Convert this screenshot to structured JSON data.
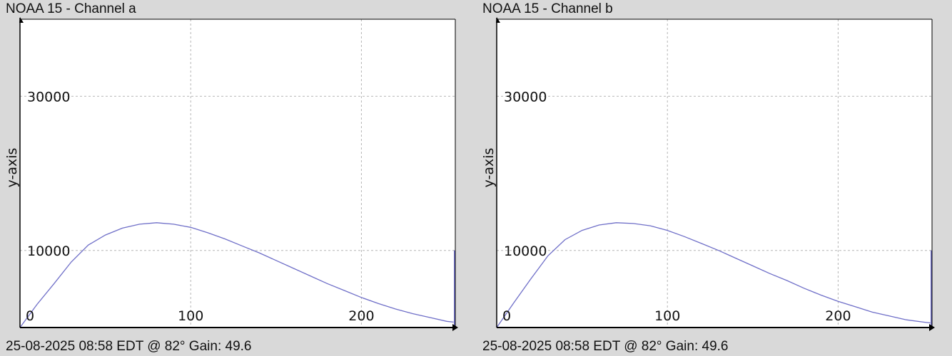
{
  "charts": [
    {
      "title": "NOAA 15 - Channel a",
      "footer": "25-08-2025 08:58 EDT @ 82° Gain: 49.6"
    },
    {
      "title": "NOAA 15 - Channel b",
      "footer": "25-08-2025 08:58 EDT @ 82° Gain: 49.6"
    }
  ],
  "chart_data": [
    {
      "type": "line",
      "title": "NOAA 15 - Channel a",
      "xlabel": "",
      "ylabel": "y-axis",
      "xlim": [
        0,
        255
      ],
      "ylim": [
        0,
        40000
      ],
      "x_ticks": [
        0,
        100,
        200
      ],
      "y_ticks": [
        0,
        10000,
        30000
      ],
      "grid": true,
      "line_color": "#6f6fc8",
      "series": [
        {
          "x": [
            0,
            10,
            20,
            30,
            40,
            50,
            60,
            70,
            80,
            90,
            100,
            110,
            120,
            130,
            140,
            150,
            160,
            170,
            180,
            190,
            200,
            210,
            220,
            230,
            240,
            250,
            254
          ],
          "y": [
            0,
            3000,
            5700,
            8500,
            10700,
            12000,
            12900,
            13400,
            13600,
            13400,
            13000,
            12300,
            11500,
            10600,
            9700,
            8700,
            7700,
            6700,
            5700,
            4800,
            3900,
            3100,
            2400,
            1800,
            1300,
            800,
            700
          ]
        }
      ],
      "spike": {
        "x": 255,
        "y": 10000
      }
    },
    {
      "type": "line",
      "title": "NOAA 15 - Channel b",
      "xlabel": "",
      "ylabel": "y-axis",
      "xlim": [
        0,
        255
      ],
      "ylim": [
        0,
        40000
      ],
      "x_ticks": [
        0,
        100,
        200
      ],
      "y_ticks": [
        0,
        10000,
        30000
      ],
      "grid": true,
      "line_color": "#6f6fc8",
      "series": [
        {
          "x": [
            0,
            10,
            20,
            30,
            40,
            50,
            60,
            70,
            80,
            90,
            100,
            110,
            120,
            130,
            140,
            150,
            160,
            170,
            180,
            190,
            200,
            210,
            220,
            230,
            240,
            250,
            254
          ],
          "y": [
            0,
            3200,
            6300,
            9300,
            11400,
            12600,
            13300,
            13600,
            13500,
            13200,
            12600,
            11800,
            10900,
            10000,
            9000,
            8000,
            7000,
            6100,
            5100,
            4200,
            3400,
            2700,
            2000,
            1500,
            1000,
            700,
            600
          ]
        }
      ],
      "spike": {
        "x": 255,
        "y": 10000
      }
    }
  ]
}
